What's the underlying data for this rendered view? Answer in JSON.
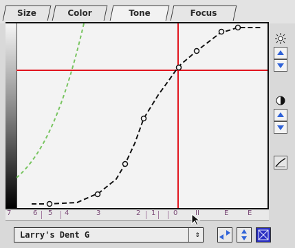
{
  "tabs": [
    {
      "label": "Size"
    },
    {
      "label": "Color"
    },
    {
      "label": "Tone",
      "active": true
    },
    {
      "label": "Focus"
    }
  ],
  "zone_ticks": [
    "7",
    "6",
    "5",
    "4",
    "3",
    "2",
    "1",
    "0",
    "II",
    "E",
    "E"
  ],
  "profile": {
    "label": "Larry's Dent G"
  },
  "colors": {
    "crosshair": "#e1141d",
    "tone_curve": "#111111",
    "reference_curve": "#77c45f",
    "tick_text": "#7b4b78"
  },
  "icons": {
    "brightness": "sun-icon",
    "contrast": "contrast-icon",
    "curve": "curve-icon",
    "steps": "arrows-icon",
    "scale": "scale-icon",
    "grid": "grid-icon"
  }
}
